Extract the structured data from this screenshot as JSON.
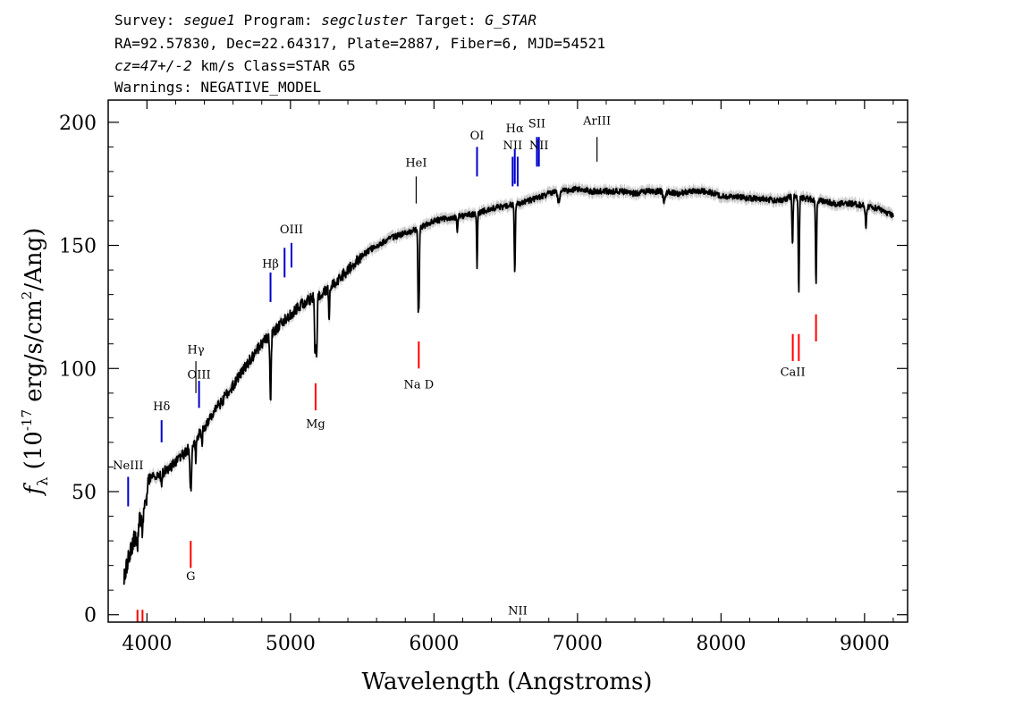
{
  "header": {
    "line1_parts": [
      {
        "text": "Survey: ",
        "italic": false
      },
      {
        "text": "segue1",
        "italic": true
      },
      {
        "text": " Program: ",
        "italic": false
      },
      {
        "text": "segcluster",
        "italic": true
      },
      {
        "text": " Target: ",
        "italic": false
      },
      {
        "text": "G_STAR",
        "italic": true
      }
    ],
    "line2": "RA=92.57830, Dec=22.64317, Plate=2887, Fiber=6, MJD=54521",
    "line3_parts": [
      {
        "text": "cz=47+/-2",
        "italic": true
      },
      {
        "text": " km/s Class=STAR G5",
        "italic": false
      }
    ],
    "line4": "Warnings: NEGATIVE_MODEL"
  },
  "chart_data": {
    "type": "line",
    "xlabel": "Wavelength (Angstroms)",
    "ylabel": "f_λ (10^-17 erg/s/cm^2/Ang)",
    "xlim": [
      3730,
      9300
    ],
    "ylim": [
      -3,
      209
    ],
    "x_ticks": [
      4000,
      5000,
      6000,
      7000,
      8000,
      9000
    ],
    "y_ticks": [
      0,
      50,
      100,
      150,
      200
    ],
    "grid": false,
    "series": [
      {
        "color": "#000000",
        "error_band_color": "#c8c8c8",
        "continuum": [
          [
            3840,
            16
          ],
          [
            3900,
            28
          ],
          [
            3950,
            38
          ],
          [
            3990,
            44
          ],
          [
            4010,
            55
          ],
          [
            4100,
            57
          ],
          [
            4200,
            62
          ],
          [
            4300,
            68
          ],
          [
            4400,
            76
          ],
          [
            4500,
            85
          ],
          [
            4600,
            93
          ],
          [
            4700,
            102
          ],
          [
            4800,
            110
          ],
          [
            4900,
            116
          ],
          [
            5000,
            122
          ],
          [
            5100,
            127
          ],
          [
            5200,
            130
          ],
          [
            5300,
            134
          ],
          [
            5400,
            140
          ],
          [
            5500,
            146
          ],
          [
            5600,
            150
          ],
          [
            5700,
            153
          ],
          [
            5800,
            155
          ],
          [
            5900,
            157
          ],
          [
            6000,
            160
          ],
          [
            6100,
            161
          ],
          [
            6200,
            162
          ],
          [
            6300,
            163
          ],
          [
            6400,
            165
          ],
          [
            6500,
            166
          ],
          [
            6600,
            167
          ],
          [
            6700,
            169
          ],
          [
            6800,
            171
          ],
          [
            6900,
            172
          ],
          [
            7000,
            173
          ],
          [
            7100,
            172
          ],
          [
            7200,
            172
          ],
          [
            7300,
            172
          ],
          [
            7400,
            171
          ],
          [
            7500,
            172
          ],
          [
            7600,
            172
          ],
          [
            7700,
            171
          ],
          [
            7800,
            172
          ],
          [
            7900,
            172
          ],
          [
            8000,
            170
          ],
          [
            8100,
            170
          ],
          [
            8200,
            169
          ],
          [
            8300,
            169
          ],
          [
            8400,
            168
          ],
          [
            8500,
            170
          ],
          [
            8600,
            169
          ],
          [
            8700,
            168
          ],
          [
            8800,
            167
          ],
          [
            8900,
            167
          ],
          [
            9000,
            166
          ],
          [
            9100,
            165
          ],
          [
            9200,
            162
          ]
        ],
        "absorption": [
          [
            3933,
            7,
            6
          ],
          [
            3968,
            7,
            6
          ],
          [
            4101,
            5,
            5
          ],
          [
            4305,
            18,
            8
          ],
          [
            4340,
            8,
            5
          ],
          [
            4384,
            6,
            4
          ],
          [
            4861,
            28,
            6
          ],
          [
            5172,
            25,
            6
          ],
          [
            5183,
            24,
            5
          ],
          [
            5269,
            12,
            5
          ],
          [
            5890,
            30,
            4
          ],
          [
            5896,
            28,
            4
          ],
          [
            6163,
            6,
            5
          ],
          [
            6300,
            22,
            4
          ],
          [
            6563,
            28,
            5
          ],
          [
            6870,
            4,
            10
          ],
          [
            7605,
            4,
            12
          ],
          [
            8498,
            20,
            5
          ],
          [
            8542,
            40,
            5
          ],
          [
            8662,
            35,
            5
          ],
          [
            9010,
            8,
            6
          ]
        ]
      }
    ]
  },
  "emission_lines": [
    {
      "label": "NeIII",
      "x": 3869,
      "label_y": 59,
      "line_y": [
        44,
        56
      ],
      "color": "#0000cc"
    },
    {
      "label": "Hδ",
      "x": 4102,
      "label_y": 83,
      "line_y": [
        70,
        79
      ],
      "color": "#0000cc"
    },
    {
      "label": "Hγ",
      "x": 4341,
      "label_y": 106,
      "line_y": [
        90,
        103
      ],
      "color": "#000000"
    },
    {
      "label": "OIII",
      "x": 4363,
      "label_y": 96,
      "line_y": [
        84,
        95
      ],
      "color": "#0000cc"
    },
    {
      "label": "Hβ",
      "x": 4861,
      "label_y": 141,
      "line_y": [
        127,
        139
      ],
      "color": "#0000cc"
    },
    {
      "label": "",
      "x": 4959,
      "label_y": 0,
      "line_y": [
        137,
        149
      ],
      "color": "#0000cc"
    },
    {
      "label": "OIII",
      "x": 5007,
      "label_y": 155,
      "line_y": [
        141,
        151
      ],
      "color": "#0000cc"
    },
    {
      "label": "HeI",
      "x": 5876,
      "label_y": 182,
      "line_y": [
        167,
        178
      ],
      "color": "#000000"
    },
    {
      "label": "OI",
      "x": 6300,
      "label_y": 193,
      "line_y": [
        178,
        190
      ],
      "color": "#0000cc"
    },
    {
      "label": "NII",
      "x": 6548,
      "label_y": 189,
      "line_y": [
        174,
        186
      ],
      "color": "#0000cc"
    },
    {
      "label": "Hα",
      "x": 6563,
      "label_y": 196,
      "line_y": [
        175,
        189
      ],
      "color": "#0000cc"
    },
    {
      "label": "NII",
      "x": 6583,
      "label_y": 0,
      "line_y": [
        174,
        186
      ],
      "color": "#0000cc"
    },
    {
      "label": "SII",
      "x": 6717,
      "label_y": 198,
      "line_y": [
        182,
        194
      ],
      "color": "#0000cc"
    },
    {
      "label": "NII",
      "x": 6731,
      "label_y": 189,
      "line_y": [
        182,
        194
      ],
      "color": "#0000cc"
    },
    {
      "label": "ArIII",
      "x": 7136,
      "label_y": 199,
      "line_y": [
        184,
        194
      ],
      "color": "#000000"
    }
  ],
  "absorption_lines": [
    {
      "label": "",
      "x": 3934,
      "label_y": 0,
      "line_y": [
        -3,
        2
      ],
      "color": "#ff0000"
    },
    {
      "label": "",
      "x": 3969,
      "label_y": 0,
      "line_y": [
        -3,
        2
      ],
      "color": "#ff0000"
    },
    {
      "label": "G",
      "x": 4305,
      "label_y": 14,
      "line_y": [
        19,
        30
      ],
      "color": "#ff0000"
    },
    {
      "label": "Mg",
      "x": 5175,
      "label_y": 76,
      "line_y": [
        83,
        94
      ],
      "color": "#ff0000"
    },
    {
      "label": "Na D",
      "x": 5894,
      "label_y": 92,
      "line_y": [
        100,
        111
      ],
      "color": "#ff0000"
    },
    {
      "label": "CaII",
      "x": 8500,
      "label_y": 97,
      "line_y": [
        103,
        114
      ],
      "color": "#ff0000"
    },
    {
      "label": "",
      "x": 8542,
      "label_y": 0,
      "line_y": [
        103,
        114
      ],
      "color": "#ff0000"
    },
    {
      "label": "",
      "x": 8662,
      "label_y": 0,
      "line_y": [
        111,
        122
      ],
      "color": "#ff0000"
    }
  ]
}
